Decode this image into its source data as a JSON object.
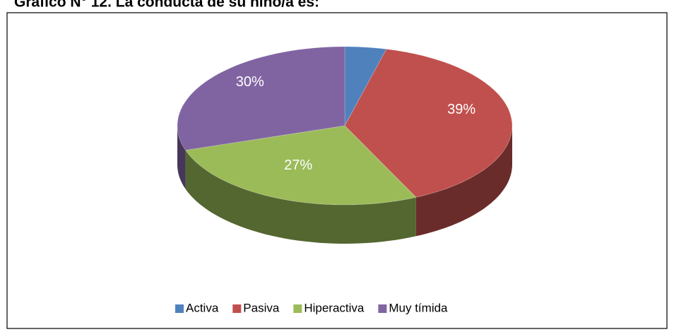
{
  "chart_data": {
    "type": "pie3d",
    "title": "Gráfico N° 12. La conducta de su niño/a es:",
    "categories": [
      "Activa",
      "Pasiva",
      "Hiperactiva",
      "Muy tímida"
    ],
    "values": [
      4,
      39,
      27,
      30
    ],
    "value_labels": [
      null,
      "39%",
      "27%",
      "30%"
    ],
    "colors": [
      "#4f81bd",
      "#c0504d",
      "#9bbb59",
      "#8064a2"
    ],
    "legend": "bottom"
  }
}
